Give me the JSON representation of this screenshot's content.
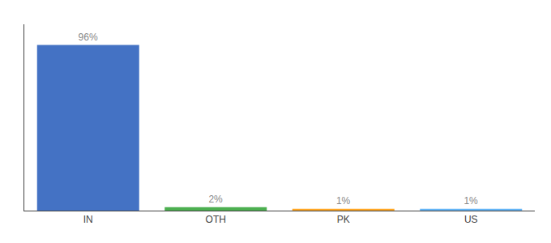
{
  "chart_data": {
    "type": "bar",
    "categories": [
      "IN",
      "OTH",
      "PK",
      "US"
    ],
    "values": [
      96,
      2,
      1,
      1
    ],
    "value_labels": [
      "96%",
      "2%",
      "1%",
      "1%"
    ],
    "data_labels": true,
    "colors": [
      "#4472C4",
      "#4CAF50",
      "#FFA726",
      "#64B5F6"
    ],
    "ylim": [
      0,
      108
    ],
    "tick_labels": "x",
    "grid": false
  }
}
